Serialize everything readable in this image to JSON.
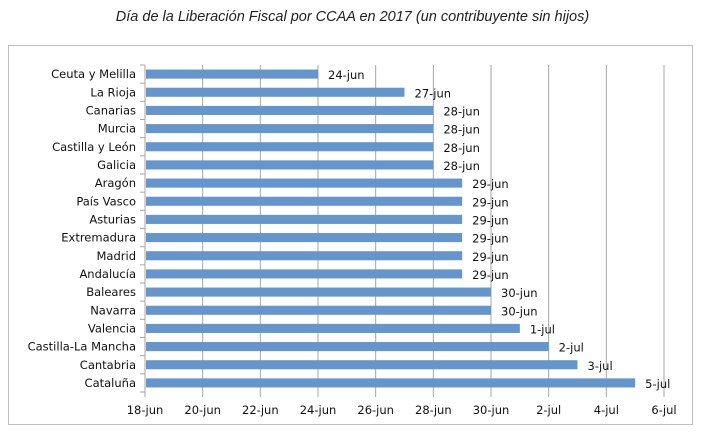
{
  "chart_data": {
    "type": "bar",
    "orientation": "horizontal",
    "title": "Día de la Liberación Fiscal por CCAA en 2017 (un contribuyente sin hijos)",
    "xlabel": "",
    "ylabel": "",
    "categories": [
      "Ceuta y Melilla",
      "La Rioja",
      "Canarias",
      "Murcia",
      "Castilla y León",
      "Galicia",
      "Aragón",
      "País Vasco",
      "Asturias",
      "Extremadura",
      "Madrid",
      "Andalucía",
      "Baleares",
      "Navarra",
      "Valencia",
      "Castilla-La Mancha",
      "Cantabria",
      "Cataluña"
    ],
    "values_day_offset_from_18_jun": [
      6,
      9,
      10,
      10,
      10,
      10,
      11,
      11,
      11,
      11,
      11,
      11,
      12,
      12,
      13,
      14,
      15,
      17
    ],
    "data_labels": [
      "24-jun",
      "27-jun",
      "28-jun",
      "28-jun",
      "28-jun",
      "28-jun",
      "29-jun",
      "29-jun",
      "29-jun",
      "29-jun",
      "29-jun",
      "29-jun",
      "30-jun",
      "30-jun",
      "1-jul",
      "2-jul",
      "3-jul",
      "5-jul"
    ],
    "xlim_day_offset": [
      0,
      18
    ],
    "x_tick_labels": [
      "18-jun",
      "20-jun",
      "22-jun",
      "24-jun",
      "26-jun",
      "28-jun",
      "30-jun",
      "2-jul",
      "4-jul",
      "6-jul"
    ],
    "x_tick_step_days": 2,
    "grid": "vertical",
    "legend": "none",
    "bar_color": "#6495cd",
    "grid_color": "#a6a6a6"
  }
}
